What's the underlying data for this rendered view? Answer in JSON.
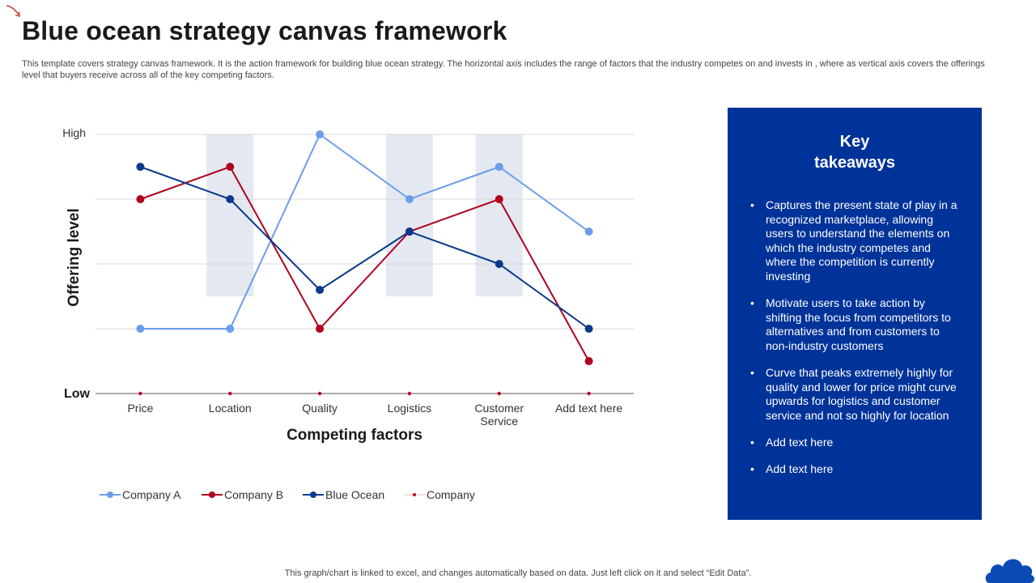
{
  "page": {
    "title": "Blue ocean strategy canvas framework",
    "description": "This template covers strategy canvas framework. It is the action framework for building blue ocean strategy. The horizontal axis includes the range of factors that the industry competes on and invests in , where as vertical axis covers the offerings level that buyers receive across all of the key competing factors.",
    "footer": "This graph/chart is linked to excel,  and changes automatically based on data. Just left click on it and select “Edit Data”."
  },
  "takeaways": {
    "heading_line1": "Key",
    "heading_line2": "takeaways",
    "items": [
      "Captures the present state of play in a recognized marketplace, allowing users to understand the elements on which the industry competes and where the competition is currently investing",
      "Motivate  users to take action by shifting the focus from competitors to alternatives and from customers to non-industry customers",
      "Curve that peaks extremely highly for quality and lower for price might curve upwards for logistics  and customer service and not so highly for location",
      "Add text here",
      "Add text here"
    ]
  },
  "icons": {
    "corner": "curved-arrow-icon",
    "logo": "cloud-icon"
  },
  "colors": {
    "company_a": "#6b9ee8",
    "company_b": "#b0001e",
    "blue_ocean": "#0a3a8c",
    "company": "#c00020",
    "highlight_band": "#e3e8f1",
    "panel": "#003399"
  },
  "chart_data": {
    "type": "line",
    "xlabel": "Competing factors",
    "ylabel": "Offering level",
    "y_high_label": "High",
    "y_low_label": "Low",
    "ylim": [
      0,
      8
    ],
    "y_gridlines": [
      2,
      4,
      6,
      8
    ],
    "categories": [
      "Price",
      "Location",
      "Quality",
      "Logistics",
      "Customer Service",
      "Add text here"
    ],
    "category_lines": [
      [
        "Price"
      ],
      [
        "Location"
      ],
      [
        "Quality"
      ],
      [
        "Logistics"
      ],
      [
        "Customer",
        "Service"
      ],
      [
        "Add text here"
      ]
    ],
    "highlighted_categories": [
      "Location",
      "Logistics",
      "Customer Service"
    ],
    "highlight_range": [
      3,
      8
    ],
    "legend_position": "bottom",
    "series": [
      {
        "name": "Company A",
        "color": "#6b9ee8",
        "values": [
          2,
          2,
          8,
          6,
          7,
          5
        ]
      },
      {
        "name": "Company B",
        "color": "#b0001e",
        "values": [
          6,
          7,
          2,
          5,
          6,
          1
        ]
      },
      {
        "name": "Blue Ocean",
        "color": "#0a3a8c",
        "values": [
          7,
          6,
          3.2,
          5,
          4,
          2
        ]
      },
      {
        "name": "Company",
        "color": "#c00020",
        "values": [
          0,
          0,
          0,
          0,
          0,
          0
        ],
        "marker_only": true
      }
    ]
  }
}
